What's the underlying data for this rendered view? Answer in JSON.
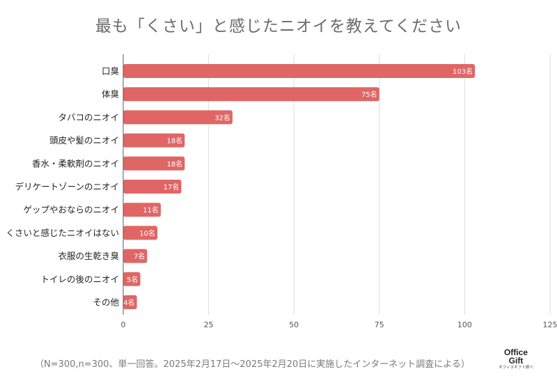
{
  "chart_data": {
    "type": "bar",
    "orientation": "horizontal",
    "title": "最も「くさい」と感じたニオイを教えてください",
    "categories": [
      "口臭",
      "体臭",
      "タバコのニオイ",
      "頭皮や髪のニオイ",
      "香水・柔軟剤のニオイ",
      "デリケートゾーンのニオイ",
      "ゲップやおならのニオイ",
      "くさいと感じたニオイはない",
      "衣服の生乾き臭",
      "トイレの後のニオイ",
      "その他"
    ],
    "values": [
      103,
      75,
      32,
      18,
      18,
      17,
      11,
      10,
      7,
      5,
      4
    ],
    "data_labels": [
      "103名",
      "75名",
      "32名",
      "18名",
      "18名",
      "17名",
      "11名",
      "10名",
      "7名",
      "5名",
      "4名"
    ],
    "xlim": [
      0,
      125
    ],
    "x_ticks": [
      0,
      25,
      50,
      75,
      100,
      125
    ],
    "x_tick_labels": [
      "0",
      "25",
      "50",
      "75",
      "100",
      "125"
    ],
    "grid": true,
    "bar_color": "#e06666",
    "label_color": "#ffffff"
  },
  "footnote": "（N=300,n=300、単一回答。2025年2月17日〜2025年2月20日に実施したインターネット調査による）",
  "logo": {
    "line1": "Office",
    "line2": "Gift",
    "sub": "オフィスギフト調べ"
  }
}
